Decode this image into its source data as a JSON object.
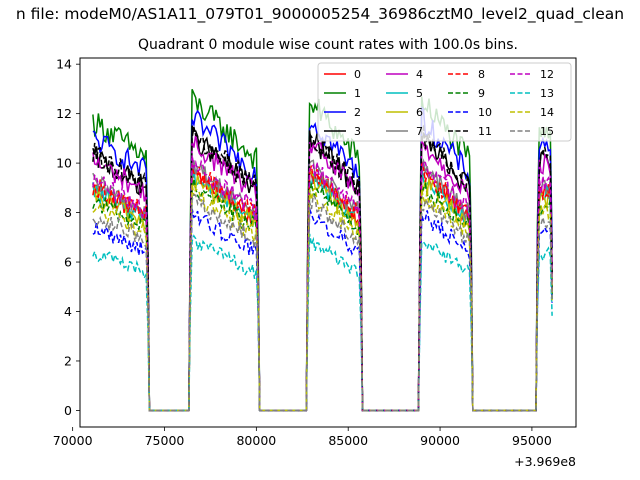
{
  "figure": {
    "suptitle": "n file: modeM0/AS1A11_079T01_9000005254_36986cztM0_level2_quad_clean",
    "offset_text": "+3.969e8"
  },
  "chart_data": {
    "type": "line",
    "title": "Quadrant 0 module wise count rates with 100.0s bins.",
    "xlabel": "",
    "ylabel": "",
    "xlim": [
      70400,
      97400
    ],
    "ylim": [
      -0.67,
      14.25
    ],
    "x_ticks": [
      70000,
      75000,
      80000,
      85000,
      90000,
      95000
    ],
    "x_tick_labels": [
      "70000",
      "75000",
      "80000",
      "85000",
      "90000",
      "95000"
    ],
    "y_ticks": [
      0,
      2,
      4,
      6,
      8,
      10,
      12,
      14
    ],
    "y_tick_labels": [
      "0",
      "2",
      "4",
      "6",
      "8",
      "10",
      "12",
      "14"
    ],
    "grid": false,
    "legend_placement": "top-right",
    "segments": [
      {
        "x_start": 71100,
        "x_end": 74100,
        "shape": "decline"
      },
      {
        "x_start": 76400,
        "x_end": 80100,
        "shape": "decline"
      },
      {
        "x_start": 82800,
        "x_end": 85700,
        "shape": "decline"
      },
      {
        "x_start": 88900,
        "x_end": 91700,
        "shape": "decline"
      },
      {
        "x_start": 95300,
        "x_end": 96100,
        "shape": "short"
      }
    ],
    "gap_value": 0,
    "series": [
      {
        "name": "0",
        "color": "#ff0000",
        "dash": "solid",
        "base": 9.0
      },
      {
        "name": "1",
        "color": "#008000",
        "dash": "solid",
        "base": 11.7
      },
      {
        "name": "2",
        "color": "#0000ff",
        "dash": "solid",
        "base": 11.0
      },
      {
        "name": "3",
        "color": "#000000",
        "dash": "solid",
        "base": 10.3
      },
      {
        "name": "4",
        "color": "#bf00bf",
        "dash": "solid",
        "base": 10.1
      },
      {
        "name": "5",
        "color": "#00bfbf",
        "dash": "solid",
        "base": 8.9
      },
      {
        "name": "6",
        "color": "#bfbf00",
        "dash": "solid",
        "base": 8.7
      },
      {
        "name": "7",
        "color": "#808080",
        "dash": "solid",
        "base": 9.2
      },
      {
        "name": "8",
        "color": "#ff0000",
        "dash": "dashed",
        "base": 9.1
      },
      {
        "name": "9",
        "color": "#008000",
        "dash": "dashed",
        "base": 8.5
      },
      {
        "name": "10",
        "color": "#0000ff",
        "dash": "dashed",
        "base": 7.4
      },
      {
        "name": "11",
        "color": "#000000",
        "dash": "dashed",
        "base": 10.4
      },
      {
        "name": "12",
        "color": "#bf00bf",
        "dash": "dashed",
        "base": 9.3
      },
      {
        "name": "13",
        "color": "#00bfbf",
        "dash": "dashed",
        "base": 6.4
      },
      {
        "name": "14",
        "color": "#bfbf00",
        "dash": "dashed",
        "base": 8.2
      },
      {
        "name": "15",
        "color": "#808080",
        "dash": "dashed",
        "base": 7.9
      }
    ]
  }
}
